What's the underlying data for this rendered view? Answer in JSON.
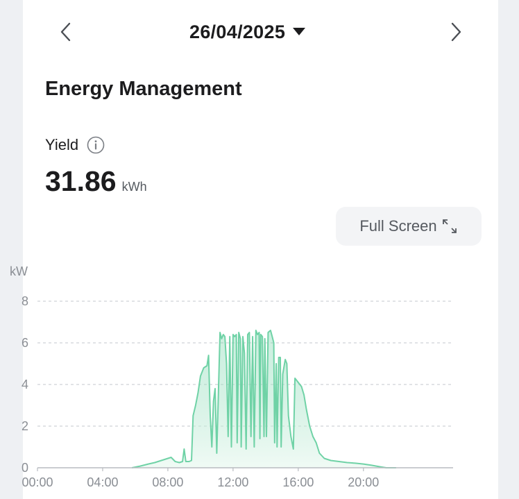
{
  "date_nav": {
    "date": "26/04/2025",
    "prev_icon": "chevron-left-icon",
    "next_icon": "chevron-right-icon",
    "dropdown_icon": "caret-down-icon"
  },
  "section": {
    "title": "Energy Management"
  },
  "yield": {
    "label": "Yield",
    "value": "31.86",
    "unit": "kWh",
    "info_icon": "info-icon"
  },
  "fullscreen": {
    "label": "Full Screen",
    "icon": "expand-icon"
  },
  "colors": {
    "line": "#6fd2a6",
    "fill": "#e6f7ee",
    "grid": "#cfd2d6",
    "text": "#1c1c1e",
    "axis_text": "#8a8e94"
  },
  "chart_data": {
    "type": "area",
    "ylabel": "kW",
    "ylim": [
      0,
      8
    ],
    "yticks": [
      0,
      2,
      4,
      6,
      8
    ],
    "xlim": [
      0,
      25.5
    ],
    "xticks": [
      {
        "hour": 0,
        "label": "00:00"
      },
      {
        "hour": 4,
        "label": "04:00"
      },
      {
        "hour": 8,
        "label": "08:00"
      },
      {
        "hour": 12,
        "label": "12:00"
      },
      {
        "hour": 16,
        "label": "16:00"
      },
      {
        "hour": 20,
        "label": "20:00"
      }
    ],
    "grid": true,
    "series": [
      {
        "points": [
          [
            5.8,
            0.0
          ],
          [
            6.3,
            0.08
          ],
          [
            6.8,
            0.18
          ],
          [
            7.2,
            0.25
          ],
          [
            7.6,
            0.35
          ],
          [
            8.0,
            0.45
          ],
          [
            8.2,
            0.5
          ],
          [
            8.45,
            0.3
          ],
          [
            8.7,
            0.25
          ],
          [
            8.9,
            0.3
          ],
          [
            9.0,
            0.9
          ],
          [
            9.1,
            0.3
          ],
          [
            9.3,
            0.3
          ],
          [
            9.45,
            0.35
          ],
          [
            9.55,
            2.5
          ],
          [
            9.7,
            3.0
          ],
          [
            9.85,
            3.6
          ],
          [
            10.0,
            4.4
          ],
          [
            10.2,
            4.8
          ],
          [
            10.4,
            4.9
          ],
          [
            10.5,
            5.4
          ],
          [
            10.6,
            2.5
          ],
          [
            10.7,
            1.0
          ],
          [
            10.8,
            3.2
          ],
          [
            10.9,
            3.8
          ],
          [
            11.0,
            0.7
          ],
          [
            11.1,
            3.5
          ],
          [
            11.2,
            6.5
          ],
          [
            11.3,
            6.2
          ],
          [
            11.4,
            6.4
          ],
          [
            11.5,
            6.3
          ],
          [
            11.6,
            5.0
          ],
          [
            11.7,
            1.5
          ],
          [
            11.8,
            6.3
          ],
          [
            11.9,
            1.0
          ],
          [
            12.0,
            6.4
          ],
          [
            12.1,
            6.3
          ],
          [
            12.2,
            6.4
          ],
          [
            12.25,
            1.2
          ],
          [
            12.35,
            6.5
          ],
          [
            12.45,
            6.2
          ],
          [
            12.5,
            1.0
          ],
          [
            12.6,
            6.3
          ],
          [
            12.7,
            5.5
          ],
          [
            12.8,
            0.9
          ],
          [
            12.9,
            6.4
          ],
          [
            13.0,
            6.5
          ],
          [
            13.1,
            1.5
          ],
          [
            13.2,
            6.3
          ],
          [
            13.3,
            1.0
          ],
          [
            13.4,
            6.6
          ],
          [
            13.5,
            6.4
          ],
          [
            13.6,
            6.5
          ],
          [
            13.65,
            1.4
          ],
          [
            13.7,
            6.4
          ],
          [
            13.8,
            6.3
          ],
          [
            13.9,
            1.5
          ],
          [
            13.95,
            6.2
          ],
          [
            14.05,
            1.5
          ],
          [
            14.15,
            6.5
          ],
          [
            14.3,
            6.6
          ],
          [
            14.4,
            6.3
          ],
          [
            14.5,
            6.0
          ],
          [
            14.55,
            1.2
          ],
          [
            14.65,
            5.0
          ],
          [
            14.7,
            1.0
          ],
          [
            14.8,
            5.3
          ],
          [
            14.9,
            5.3
          ],
          [
            14.95,
            1.0
          ],
          [
            15.05,
            4.5
          ],
          [
            15.2,
            5.2
          ],
          [
            15.3,
            5.0
          ],
          [
            15.4,
            2.5
          ],
          [
            15.55,
            1.5
          ],
          [
            15.7,
            0.9
          ],
          [
            15.8,
            4.3
          ],
          [
            16.0,
            4.1
          ],
          [
            16.2,
            3.9
          ],
          [
            16.35,
            3.5
          ],
          [
            16.5,
            2.8
          ],
          [
            16.7,
            2.0
          ],
          [
            16.9,
            1.5
          ],
          [
            17.1,
            1.2
          ],
          [
            17.3,
            0.7
          ],
          [
            17.6,
            0.45
          ],
          [
            18.0,
            0.35
          ],
          [
            18.5,
            0.3
          ],
          [
            19.0,
            0.25
          ],
          [
            19.5,
            0.22
          ],
          [
            20.0,
            0.18
          ],
          [
            20.5,
            0.12
          ],
          [
            21.0,
            0.05
          ],
          [
            21.4,
            0.0
          ],
          [
            22.0,
            0.0
          ]
        ]
      }
    ]
  }
}
